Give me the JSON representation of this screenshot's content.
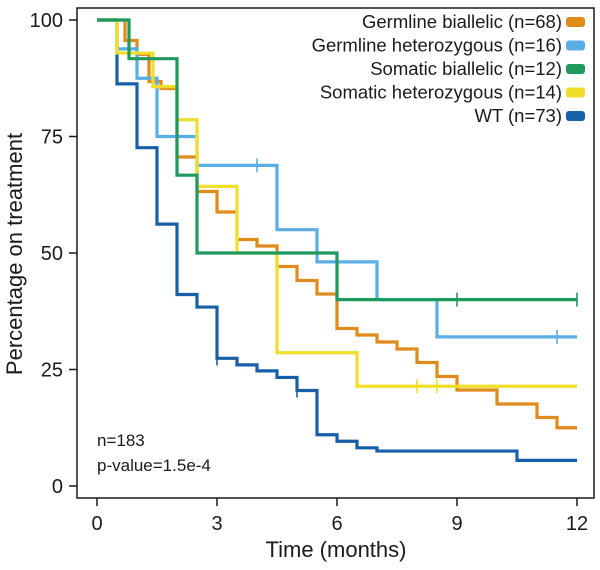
{
  "chart_data": {
    "type": "line",
    "style": "kaplan-meier step curves",
    "title": "",
    "xlabel": "Time (months)",
    "ylabel": "Percentage on treatment",
    "xlim": [
      0,
      12
    ],
    "ylim": [
      0,
      100
    ],
    "x_ticks": [
      0,
      3,
      6,
      9,
      12
    ],
    "y_ticks": [
      0,
      25,
      50,
      75,
      100
    ],
    "grid": false,
    "legend_position": "top-right",
    "annotations": [
      "n=183",
      "p-value=1.5e-4"
    ],
    "series": [
      {
        "name": "Germline biallelic (n=68)",
        "color": "#e08b1c",
        "steps": [
          [
            0,
            100
          ],
          [
            0.7,
            95.6
          ],
          [
            1,
            92.6
          ],
          [
            1.3,
            86.8
          ],
          [
            1.6,
            85.3
          ],
          [
            2,
            70.6
          ],
          [
            2.5,
            63.2
          ],
          [
            3,
            58.8
          ],
          [
            3.5,
            52.9
          ],
          [
            4,
            51.5
          ],
          [
            4.5,
            47.1
          ],
          [
            5,
            44.1
          ],
          [
            5.5,
            41.2
          ],
          [
            6,
            33.8
          ],
          [
            6.5,
            32.4
          ],
          [
            7,
            30.9
          ],
          [
            7.5,
            29.4
          ],
          [
            8,
            26.5
          ],
          [
            8.5,
            23.5
          ],
          [
            9,
            20.6
          ],
          [
            10,
            17.6
          ],
          [
            11,
            14.7
          ],
          [
            11.5,
            12.5
          ],
          [
            12,
            12.5
          ]
        ],
        "censor_x": [
          2.5
        ]
      },
      {
        "name": "Germline heterozygous (n=16)",
        "color": "#5aaee6",
        "steps": [
          [
            0,
            100
          ],
          [
            0.5,
            93.8
          ],
          [
            1,
            87.5
          ],
          [
            1.5,
            75
          ],
          [
            2.5,
            68.8
          ],
          [
            4.5,
            55
          ],
          [
            5.5,
            48.1
          ],
          [
            7,
            40
          ],
          [
            8.5,
            32
          ],
          [
            12,
            32
          ]
        ],
        "censor_x": [
          4,
          11.5
        ]
      },
      {
        "name": "Somatic biallelic (n=12)",
        "color": "#1f9a5e",
        "steps": [
          [
            0,
            100
          ],
          [
            0.8,
            91.7
          ],
          [
            1.5,
            91.7
          ],
          [
            2,
            66.7
          ],
          [
            2.5,
            50
          ],
          [
            5,
            50
          ],
          [
            6,
            40
          ],
          [
            12,
            40
          ]
        ],
        "censor_x": [
          9,
          12
        ]
      },
      {
        "name": "Somatic heterozygous (n=14)",
        "color": "#f0de2a",
        "steps": [
          [
            0,
            100
          ],
          [
            0.5,
            92.9
          ],
          [
            1.4,
            85.7
          ],
          [
            2,
            78.6
          ],
          [
            2.5,
            64.3
          ],
          [
            3.5,
            50
          ],
          [
            4.5,
            28.6
          ],
          [
            6.5,
            21.4
          ],
          [
            12,
            21.4
          ]
        ],
        "censor_x": [
          8,
          8.5
        ]
      },
      {
        "name": "WT (n=73)",
        "color": "#1760a8",
        "steps": [
          [
            0,
            100
          ],
          [
            0.5,
            86.3
          ],
          [
            1,
            72.6
          ],
          [
            1.5,
            56.2
          ],
          [
            2,
            41.1
          ],
          [
            2.5,
            38.4
          ],
          [
            3,
            27.4
          ],
          [
            3.5,
            26
          ],
          [
            4,
            24.7
          ],
          [
            4.5,
            23.3
          ],
          [
            5,
            20.5
          ],
          [
            5.5,
            11
          ],
          [
            6,
            9.6
          ],
          [
            6.5,
            8.2
          ],
          [
            7,
            7.5
          ],
          [
            10.5,
            5.5
          ],
          [
            12,
            5.5
          ]
        ],
        "censor_x": [
          3,
          5
        ]
      }
    ]
  }
}
